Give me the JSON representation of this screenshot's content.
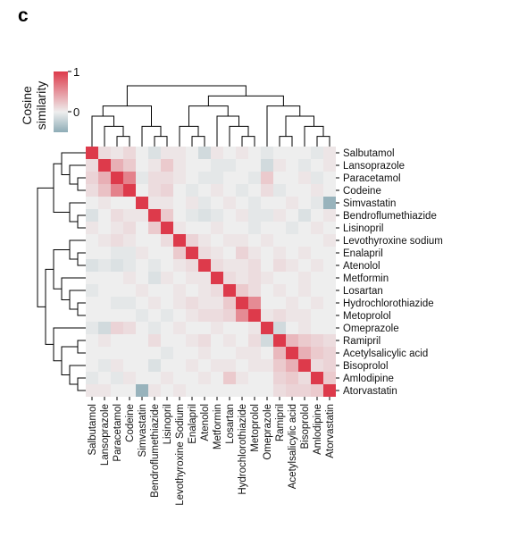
{
  "panel_label": "c",
  "colors": {
    "negative": "#8eacb6",
    "neutral": "#eeeeee",
    "positive": "#dd3a4b",
    "dendrogram": "#000000"
  },
  "chart_data": {
    "type": "heatmap",
    "title": "",
    "colorbar": {
      "title_lines": [
        "Cosine",
        "similarity"
      ],
      "ticks": [
        "1",
        "0"
      ],
      "range": [
        -0.5,
        1
      ],
      "placement": "top-left"
    },
    "row_dendrogram_placement": "left",
    "col_dendrogram_placement": "top",
    "row_labels": [
      "Salbutamol",
      "Lansoprazole",
      "Paracetamol",
      "Codeine",
      "Simvastatin",
      "Bendroflumethiazide",
      "Lisinopril",
      "Levothyroxine sodium",
      "Enalapril",
      "Atenolol",
      "Metformin",
      "Losartan",
      "Hydrochlorothiazide",
      "Metoprolol",
      "Omeprazole",
      "Ramipril",
      "Acetylsalicylic acid",
      "Bisoprolol",
      "Amlodipine",
      "Atorvastatin"
    ],
    "col_labels": [
      "Salbutamol",
      "Lansoprazole",
      "Paracetamol",
      "Codeine",
      "Simvastatin",
      "Bendroflumethiazide",
      "Lisinopril",
      "Levothyroxine Sodium",
      "Enalapril",
      "Atenolol",
      "Metformin",
      "Losartan",
      "Hydrochlorothiazide",
      "Metoprolol",
      "Omeprazole",
      "Ramipril",
      "Acetylsalicylic acid",
      "Bisoprolol",
      "Amlodipine",
      "Atorvastatin"
    ],
    "values": [
      [
        1.0,
        0.1,
        0.05,
        0.12,
        0.0,
        -0.1,
        0.05,
        0.05,
        0.0,
        -0.15,
        0.05,
        0.0,
        0.05,
        0.0,
        -0.05,
        0.0,
        0.0,
        0.0,
        -0.05,
        0.05
      ],
      [
        0.1,
        1.0,
        0.35,
        0.2,
        0.0,
        0.05,
        0.2,
        0.05,
        0.0,
        0.0,
        -0.05,
        -0.05,
        0.0,
        0.0,
        -0.15,
        0.05,
        0.0,
        -0.05,
        0.0,
        0.05
      ],
      [
        0.15,
        0.35,
        1.0,
        0.6,
        -0.05,
        0.1,
        0.1,
        0.05,
        0.0,
        -0.05,
        -0.05,
        0.0,
        0.0,
        -0.05,
        0.2,
        0.0,
        0.0,
        0.05,
        -0.05,
        0.0
      ],
      [
        0.1,
        0.25,
        0.6,
        1.0,
        0.0,
        0.1,
        0.15,
        0.0,
        -0.05,
        0.0,
        0.05,
        0.0,
        -0.05,
        0.0,
        0.1,
        -0.05,
        0.0,
        0.0,
        0.05,
        0.0
      ],
      [
        0.0,
        0.05,
        0.0,
        0.0,
        1.0,
        0.05,
        0.05,
        0.0,
        0.05,
        -0.05,
        0.0,
        0.05,
        0.0,
        -0.05,
        0.0,
        0.0,
        0.05,
        0.0,
        -0.05,
        -0.45
      ],
      [
        -0.1,
        0.0,
        0.1,
        0.05,
        0.05,
        1.0,
        0.2,
        0.0,
        -0.05,
        -0.1,
        -0.05,
        0.0,
        0.05,
        -0.05,
        -0.05,
        0.05,
        0.0,
        -0.1,
        0.0,
        0.05
      ],
      [
        0.05,
        0.0,
        0.05,
        0.1,
        0.0,
        0.2,
        1.0,
        0.05,
        0.0,
        0.0,
        0.05,
        0.0,
        0.0,
        -0.05,
        0.0,
        0.0,
        -0.05,
        0.0,
        0.05,
        0.0
      ],
      [
        0.0,
        0.05,
        0.1,
        0.05,
        0.0,
        0.0,
        0.1,
        1.0,
        0.15,
        0.05,
        0.0,
        0.05,
        0.05,
        0.0,
        0.05,
        0.0,
        0.0,
        0.0,
        0.0,
        0.05
      ],
      [
        0.0,
        0.0,
        -0.05,
        -0.05,
        0.05,
        0.0,
        0.0,
        0.2,
        1.0,
        0.1,
        0.05,
        0.0,
        0.15,
        0.05,
        0.0,
        0.05,
        0.0,
        0.05,
        0.0,
        0.0
      ],
      [
        -0.1,
        -0.05,
        -0.1,
        -0.05,
        0.0,
        -0.05,
        0.0,
        0.05,
        0.1,
        1.0,
        0.1,
        0.05,
        0.05,
        0.1,
        0.0,
        0.1,
        0.05,
        0.0,
        0.05,
        0.0
      ],
      [
        0.0,
        0.0,
        0.0,
        0.05,
        0.0,
        -0.1,
        0.05,
        0.0,
        0.05,
        0.05,
        1.0,
        0.1,
        0.05,
        0.1,
        0.05,
        0.0,
        0.0,
        0.05,
        0.0,
        0.0
      ],
      [
        -0.05,
        0.0,
        0.0,
        0.0,
        0.05,
        0.0,
        0.0,
        0.05,
        0.0,
        0.05,
        0.1,
        1.0,
        0.2,
        0.1,
        0.0,
        0.05,
        0.0,
        0.05,
        0.0,
        0.0
      ],
      [
        0.0,
        0.0,
        -0.05,
        -0.05,
        0.0,
        0.05,
        0.0,
        0.05,
        0.1,
        0.05,
        0.05,
        0.2,
        1.0,
        0.55,
        0.0,
        0.0,
        0.05,
        0.0,
        0.05,
        0.0
      ],
      [
        0.0,
        0.0,
        0.0,
        0.0,
        -0.05,
        0.0,
        -0.05,
        0.0,
        0.05,
        0.1,
        0.1,
        0.15,
        0.55,
        1.0,
        0.05,
        0.1,
        0.05,
        0.05,
        0.0,
        0.0
      ],
      [
        -0.05,
        -0.15,
        0.15,
        0.1,
        0.0,
        -0.05,
        0.0,
        0.05,
        0.0,
        0.0,
        0.05,
        0.0,
        0.0,
        0.05,
        1.0,
        -0.15,
        0.0,
        0.05,
        0.0,
        0.0
      ],
      [
        0.0,
        0.05,
        0.0,
        0.0,
        0.0,
        0.1,
        0.0,
        0.0,
        0.05,
        0.1,
        0.0,
        0.05,
        0.0,
        0.1,
        -0.15,
        1.0,
        0.3,
        0.2,
        0.15,
        0.1
      ],
      [
        0.0,
        0.0,
        0.0,
        0.0,
        0.0,
        0.0,
        -0.05,
        0.0,
        0.0,
        0.05,
        0.0,
        0.0,
        0.05,
        0.05,
        0.0,
        0.3,
        1.0,
        0.35,
        0.2,
        0.15
      ],
      [
        0.0,
        -0.05,
        0.05,
        0.0,
        0.0,
        -0.1,
        0.0,
        0.0,
        0.05,
        0.0,
        0.05,
        0.05,
        0.0,
        0.05,
        0.05,
        0.2,
        0.35,
        1.0,
        0.1,
        0.15
      ],
      [
        -0.05,
        0.0,
        -0.05,
        0.05,
        0.0,
        0.0,
        0.05,
        0.0,
        0.0,
        0.05,
        0.0,
        0.2,
        0.05,
        0.0,
        0.0,
        0.15,
        0.2,
        0.1,
        1.0,
        0.2
      ],
      [
        0.05,
        0.05,
        0.0,
        0.0,
        -0.45,
        0.05,
        0.0,
        0.05,
        0.0,
        0.0,
        0.0,
        0.0,
        0.0,
        0.0,
        0.0,
        0.1,
        0.15,
        0.15,
        0.2,
        1.0
      ]
    ]
  }
}
